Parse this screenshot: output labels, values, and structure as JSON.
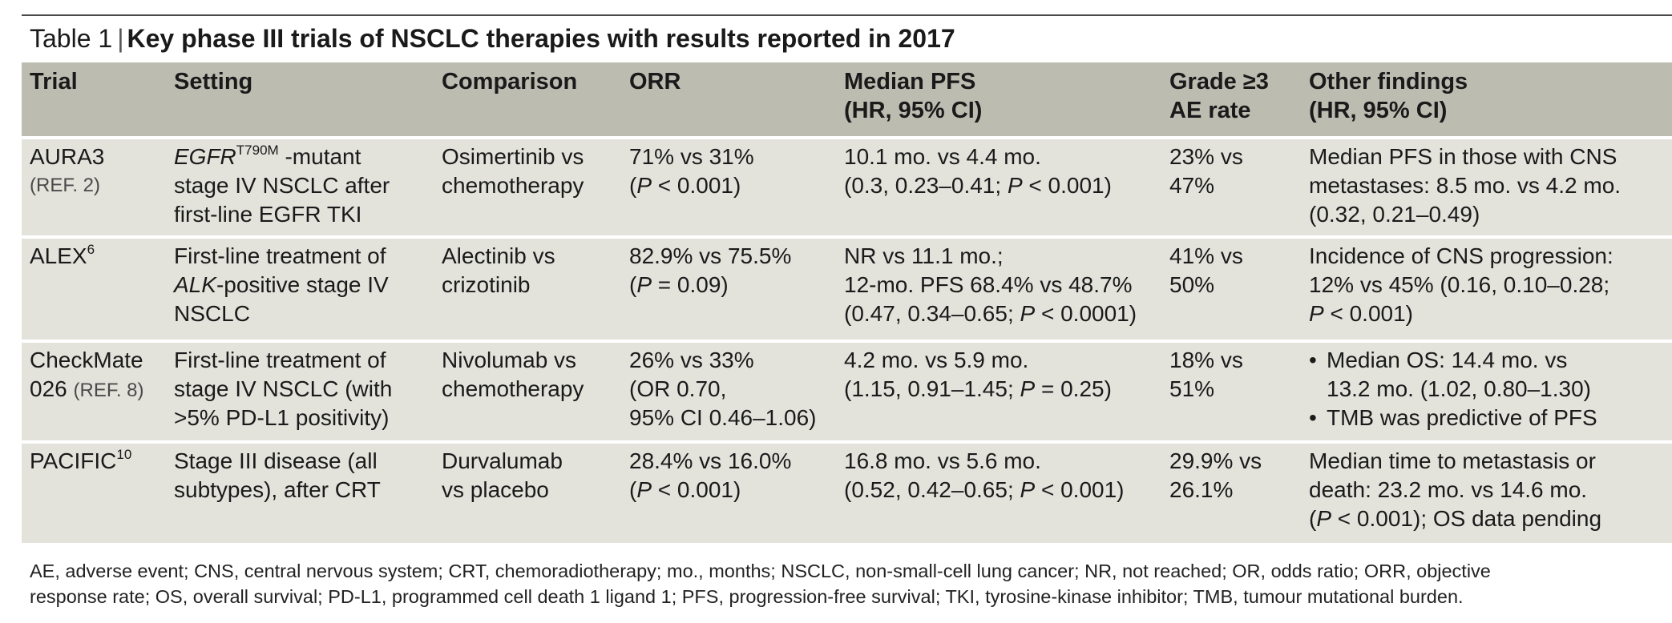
{
  "caption": {
    "label": "Table 1",
    "separator": "|",
    "title": "Key phase III trials of NSCLC therapies with results reported in 2017"
  },
  "headers": {
    "trial": "Trial",
    "setting": "Setting",
    "comparison": "Comparison",
    "orr": "ORR",
    "pfs_l1": "Median PFS",
    "pfs_l2": "(HR, 95% CI)",
    "ae_l1": "Grade ≥3",
    "ae_l2": "AE rate",
    "other_l1": "Other findings",
    "other_l2": "(HR, 95% CI)"
  },
  "rows": [
    {
      "trial": "AURA3",
      "trial_ref": "(REF. 2)",
      "setting_italic": "EGFR",
      "setting_sup": "T790M",
      "setting_l1_rest": " -mutant",
      "setting_l2": "stage IV NSCLC after",
      "setting_l3": "first-line EGFR TKI",
      "comparison_l1": "Osimertinib vs",
      "comparison_l2": "chemotherapy",
      "orr_l1": "71% vs 31%",
      "orr_l2_open": "(",
      "orr_l2_p": "P",
      "orr_l2_rest": " < 0.001)",
      "pfs_l1": "10.1 mo. vs 4.4 mo.",
      "pfs_l2_pre": "(0.3, 0.23–0.41; ",
      "pfs_l2_p": "P",
      "pfs_l2_post": " < 0.001)",
      "ae_l1": "23% vs",
      "ae_l2": "47%",
      "other_l1": "Median PFS in those with CNS",
      "other_l2": "metastases: 8.5 mo. vs 4.2 mo.",
      "other_l3": "(0.32, 0.21–0.49)"
    },
    {
      "trial": "ALEX",
      "trial_sup": "6",
      "setting_l1": "First-line treatment of",
      "setting_l2_italic": "ALK",
      "setting_l2_rest": "-positive stage IV",
      "setting_l3": "NSCLC",
      "comparison_l1": "Alectinib vs",
      "comparison_l2": "crizotinib",
      "orr_l1": "82.9% vs 75.5%",
      "orr_l2_open": "(",
      "orr_l2_p": "P",
      "orr_l2_rest": " = 0.09)",
      "pfs_l1": "NR vs 11.1 mo.;",
      "pfs_l2": "12-mo. PFS 68.4% vs 48.7%",
      "pfs_l3_pre": "(0.47, 0.34–0.65; ",
      "pfs_l3_p": "P",
      "pfs_l3_post": " < 0.0001)",
      "ae_l1": "41% vs",
      "ae_l2": "50%",
      "other_l1": "Incidence of CNS progression:",
      "other_l2": "12% vs 45% (0.16, 0.10–0.28;",
      "other_l3_p": "P",
      "other_l3_post": " < 0.001)"
    },
    {
      "trial_l1": "CheckMate",
      "trial_l2": "026",
      "trial_ref": "(REF. 8)",
      "setting_l1": "First-line treatment of",
      "setting_l2": "stage IV NSCLC (with",
      "setting_l3": ">5% PD-L1 positivity)",
      "comparison_l1": "Nivolumab vs",
      "comparison_l2": "chemotherapy",
      "orr_l1": "26% vs 33%",
      "orr_l2": "(OR 0.70,",
      "orr_l3": "95% CI 0.46–1.06)",
      "pfs_l1": "4.2 mo. vs 5.9 mo.",
      "pfs_l2_pre": "(1.15, 0.91–1.45; ",
      "pfs_l2_p": "P",
      "pfs_l2_post": " = 0.25)",
      "ae_l1": "18% vs",
      "ae_l2": "51%",
      "bullet": "•",
      "other_b1_l1": "Median OS: 14.4 mo. vs",
      "other_b1_l2": "13.2 mo. (1.02, 0.80–1.30)",
      "other_b2": "TMB was predictive of PFS"
    },
    {
      "trial": "PACIFIC",
      "trial_sup": "10",
      "setting_l1": "Stage III disease (all",
      "setting_l2": "subtypes), after CRT",
      "comparison_l1": "Durvalumab",
      "comparison_l2": "vs placebo",
      "orr_l1": "28.4% vs 16.0%",
      "orr_l2_open": "(",
      "orr_l2_p": "P",
      "orr_l2_rest": " < 0.001)",
      "pfs_l1": "16.8 mo. vs 5.6 mo.",
      "pfs_l2_pre": "(0.52, 0.42–0.65; ",
      "pfs_l2_p": "P",
      "pfs_l2_post": " < 0.001)",
      "ae_l1": "29.9% vs",
      "ae_l2": "26.1%",
      "other_l1": "Median time to metastasis or",
      "other_l2": "death: 23.2 mo. vs 14.6 mo.",
      "other_l3_open": "(",
      "other_l3_p": "P",
      "other_l3_post": " < 0.001); OS data pending"
    }
  ],
  "footnote": {
    "line1": "AE, adverse event; CNS, central nervous system; CRT, chemoradiotherapy; mo., months; NSCLC, non-small-cell lung cancer; NR, not reached; OR, odds ratio; ORR, objective",
    "line2": "response rate; OS, overall survival; PD-L1, programmed cell death 1 ligand 1; PFS, progression-free survival; TKI, tyrosine-kinase inhibitor; TMB, tumour mutational burden."
  }
}
